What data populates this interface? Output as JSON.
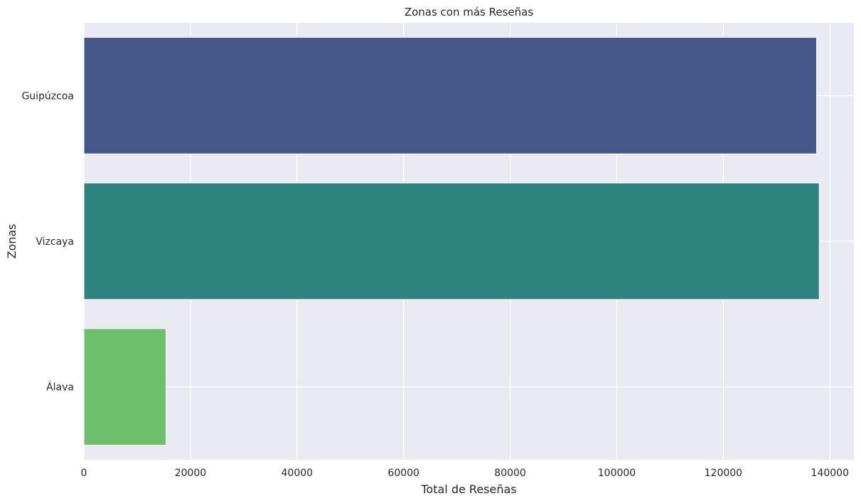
{
  "chart_data": {
    "type": "bar",
    "orientation": "horizontal",
    "title": "Zonas con más Reseñas",
    "xlabel": "Total de Reseñas",
    "ylabel": "Zonas",
    "categories": [
      "Guipúzcoa",
      "Vizcaya",
      "Álava"
    ],
    "values": [
      137500,
      138000,
      15400
    ],
    "colors": [
      "#46588a",
      "#2e847f",
      "#6dbf6c"
    ],
    "xlim": [
      0,
      144500
    ],
    "xticks": [
      0,
      20000,
      40000,
      60000,
      80000,
      100000,
      120000,
      140000
    ],
    "grid": true,
    "background": "#eaeaf2",
    "grid_color": "#ffffff"
  }
}
